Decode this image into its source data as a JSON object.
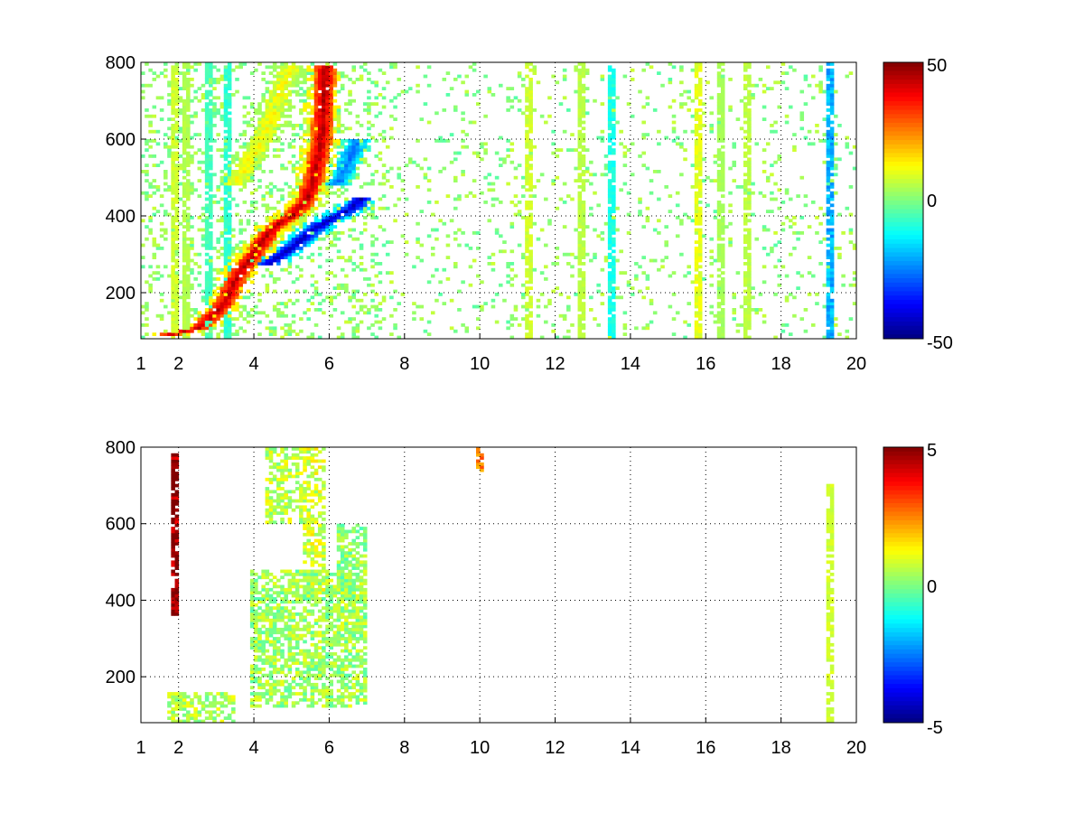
{
  "chart_data": [
    {
      "type": "heatmap",
      "title": "",
      "xlabel": "",
      "ylabel": "",
      "xlim": [
        1,
        20
      ],
      "ylim": [
        80,
        800
      ],
      "xticks": [
        1,
        2,
        4,
        6,
        8,
        10,
        12,
        14,
        16,
        18,
        20
      ],
      "yticks": [
        200,
        400,
        600,
        800
      ],
      "grid": true,
      "grid_style": "dotted",
      "colormap": "jet",
      "colorbar": {
        "range": [
          -50,
          50
        ],
        "ticks": [
          50,
          0,
          -50
        ],
        "position": "right"
      },
      "features": [
        {
          "kind": "ridge",
          "sign": "positive",
          "value": 45,
          "points": [
            [
              1.7,
              90
            ],
            [
              2.6,
              110
            ],
            [
              3.2,
              170
            ],
            [
              3.6,
              250
            ],
            [
              4.0,
              300
            ],
            [
              4.5,
              370
            ],
            [
              5.0,
              400
            ],
            [
              5.4,
              440
            ],
            [
              5.6,
              500
            ],
            [
              5.8,
              600
            ],
            [
              5.85,
              700
            ],
            [
              5.9,
              790
            ]
          ]
        },
        {
          "kind": "ridge",
          "sign": "positive",
          "value": 20,
          "points": [
            [
              3.6,
              280
            ],
            [
              4.2,
              330
            ],
            [
              4.8,
              380
            ],
            [
              5.3,
              430
            ],
            [
              5.5,
              480
            ],
            [
              5.7,
              560
            ],
            [
              5.8,
              680
            ]
          ]
        },
        {
          "kind": "ridge",
          "sign": "negative",
          "value": -45,
          "points": [
            [
              4.3,
              270
            ],
            [
              4.9,
              310
            ],
            [
              5.4,
              350
            ],
            [
              5.8,
              380
            ],
            [
              6.2,
              400
            ],
            [
              6.6,
              420
            ],
            [
              6.9,
              450
            ]
          ]
        },
        {
          "kind": "ridge",
          "sign": "negative",
          "value": -25,
          "points": [
            [
              6.2,
              480
            ],
            [
              6.5,
              540
            ],
            [
              6.8,
              600
            ]
          ]
        },
        {
          "kind": "ridge",
          "sign": "positive",
          "value": 12,
          "points": [
            [
              3.5,
              480
            ],
            [
              4.0,
              560
            ],
            [
              4.4,
              640
            ],
            [
              4.7,
              720
            ],
            [
              5.0,
              790
            ]
          ]
        },
        {
          "kind": "stripe",
          "x": 1.9,
          "value": 8
        },
        {
          "kind": "stripe",
          "x": 2.2,
          "value": 5
        },
        {
          "kind": "stripe",
          "x": 2.8,
          "value": -6
        },
        {
          "kind": "stripe",
          "x": 3.3,
          "value": -8
        },
        {
          "kind": "stripe",
          "x": 11.3,
          "value": 8
        },
        {
          "kind": "stripe",
          "x": 12.7,
          "value": 6
        },
        {
          "kind": "stripe",
          "x": 13.5,
          "value": -10
        },
        {
          "kind": "stripe",
          "x": 15.8,
          "value": 10
        },
        {
          "kind": "stripe",
          "x": 16.4,
          "value": 4
        },
        {
          "kind": "stripe",
          "x": 17.1,
          "value": 6
        },
        {
          "kind": "stripe",
          "x": 19.3,
          "value": -20
        }
      ],
      "scatter_density": 0.09
    },
    {
      "type": "heatmap",
      "title": "",
      "xlabel": "",
      "ylabel": "",
      "xlim": [
        1,
        20
      ],
      "ylim": [
        80,
        800
      ],
      "xticks": [
        1,
        2,
        4,
        6,
        8,
        10,
        12,
        14,
        16,
        18,
        20
      ],
      "yticks": [
        200,
        400,
        600,
        800
      ],
      "grid": true,
      "grid_style": "dotted",
      "colormap": "jet",
      "colorbar": {
        "range": [
          -5,
          5
        ],
        "ticks": [
          5,
          0,
          -5
        ],
        "position": "right"
      },
      "features": [
        {
          "kind": "blob",
          "x_range": [
            3.9,
            7.0
          ],
          "y_range": [
            120,
            480
          ],
          "value": 0.3
        },
        {
          "kind": "blob",
          "x_range": [
            5.3,
            5.9
          ],
          "y_range": [
            400,
            800
          ],
          "value": 0.8
        },
        {
          "kind": "blob",
          "x_range": [
            6.2,
            7.0
          ],
          "y_range": [
            300,
            600
          ],
          "value": 0.2
        },
        {
          "kind": "blob",
          "x_range": [
            4.3,
            5.3
          ],
          "y_range": [
            600,
            800
          ],
          "value": 0.6
        },
        {
          "kind": "blob",
          "x_range": [
            1.7,
            3.5
          ],
          "y_range": [
            80,
            160
          ],
          "value": 0.5
        },
        {
          "kind": "stripe",
          "x": 1.9,
          "y_range": [
            360,
            780
          ],
          "value": 5
        },
        {
          "kind": "stripe",
          "x": 10.0,
          "y_range": [
            740,
            800
          ],
          "value": 2.5
        },
        {
          "kind": "stripe",
          "x": 19.3,
          "y_range": [
            80,
            720
          ],
          "value": 0.8
        }
      ],
      "scatter_density": 0
    }
  ]
}
